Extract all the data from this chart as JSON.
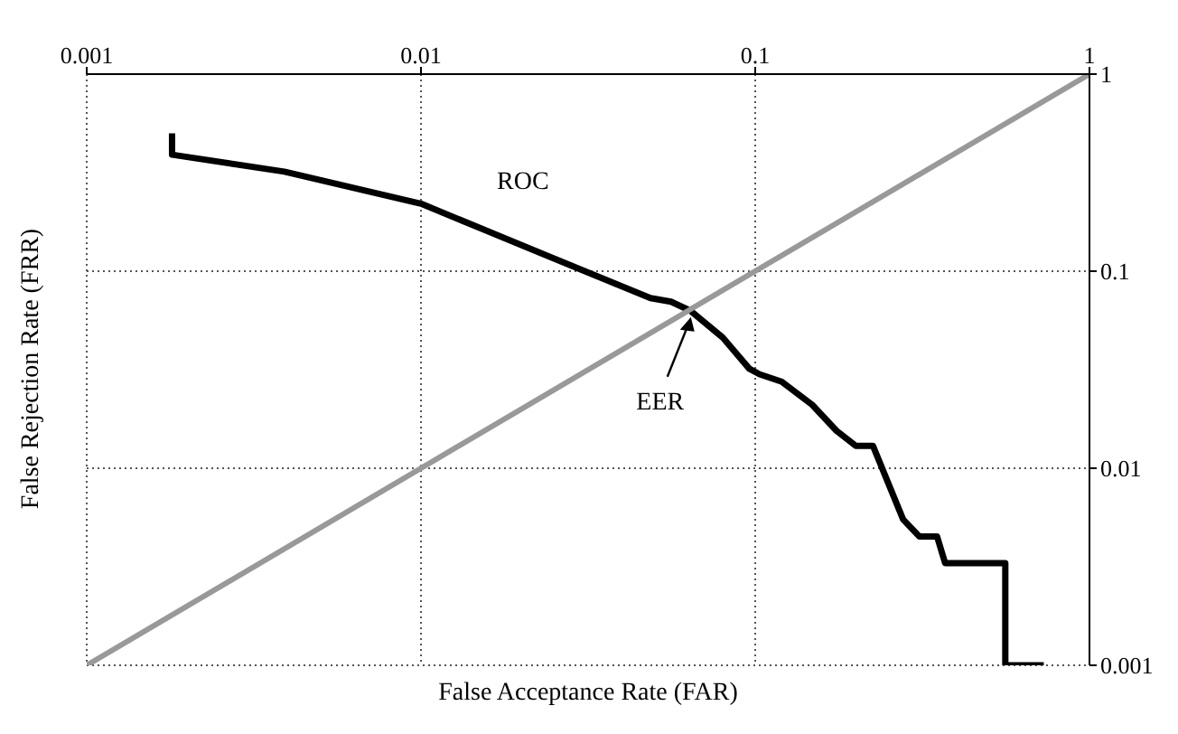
{
  "chart_data": {
    "type": "line",
    "xlabel": "False Acceptance Rate (FAR)",
    "ylabel": "False Rejection Rate (FRR)",
    "log": "xy",
    "xlim": [
      0.001,
      1
    ],
    "ylim": [
      0.001,
      1
    ],
    "xticks": [
      0.001,
      0.01,
      0.1,
      1
    ],
    "yticks": [
      0.001,
      0.01,
      0.1,
      1
    ],
    "grid": true,
    "legend": false,
    "marker": "none",
    "line_style": "solid",
    "series": [
      {
        "name": "ROC",
        "color": "#000000",
        "x": [
          0.0018,
          0.0018,
          0.0039,
          0.01,
          0.025,
          0.0486,
          0.056,
          0.064,
          0.08,
          0.096,
          0.103,
          0.12,
          0.148,
          0.175,
          0.2,
          0.225,
          0.277,
          0.31,
          0.35,
          0.37,
          0.56,
          0.56,
          0.73
        ],
        "values": [
          0.5,
          0.39,
          0.32,
          0.22,
          0.116,
          0.073,
          0.07,
          0.063,
          0.046,
          0.032,
          0.03,
          0.0275,
          0.021,
          0.0155,
          0.013,
          0.013,
          0.0055,
          0.0045,
          0.0045,
          0.0033,
          0.0033,
          0.001,
          0.001
        ]
      },
      {
        "color": "#999999",
        "x": [
          0.001,
          1
        ],
        "values": [
          0.001,
          1
        ]
      }
    ],
    "annotations": [
      {
        "text": "EER",
        "x": 0.065,
        "y": 0.065
      }
    ]
  }
}
